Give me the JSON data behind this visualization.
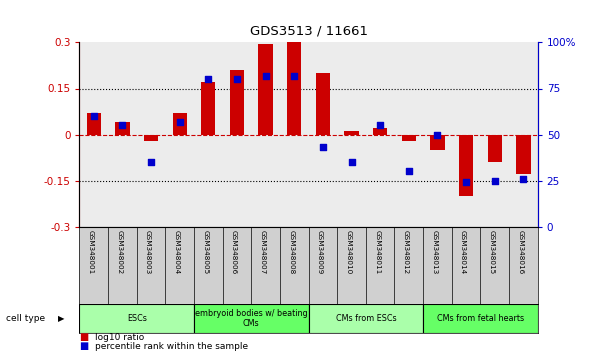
{
  "title": "GDS3513 / 11661",
  "samples": [
    "GSM348001",
    "GSM348002",
    "GSM348003",
    "GSM348004",
    "GSM348005",
    "GSM348006",
    "GSM348007",
    "GSM348008",
    "GSM348009",
    "GSM348010",
    "GSM348011",
    "GSM348012",
    "GSM348013",
    "GSM348014",
    "GSM348015",
    "GSM348016"
  ],
  "log10_ratio": [
    0.07,
    0.04,
    -0.02,
    0.07,
    0.17,
    0.21,
    0.295,
    0.3,
    0.2,
    0.01,
    0.02,
    -0.02,
    -0.05,
    -0.2,
    -0.09,
    -0.13
  ],
  "percentile_rank": [
    60,
    55,
    35,
    57,
    80,
    80,
    82,
    82,
    43,
    35,
    55,
    30,
    50,
    24,
    25,
    26
  ],
  "cell_type_groups": [
    {
      "label": "ESCs",
      "start": 0,
      "end": 4,
      "color": "#aaffaa"
    },
    {
      "label": "embryoid bodies w/ beating\nCMs",
      "start": 4,
      "end": 8,
      "color": "#66ff66"
    },
    {
      "label": "CMs from ESCs",
      "start": 8,
      "end": 12,
      "color": "#aaffaa"
    },
    {
      "label": "CMs from fetal hearts",
      "start": 12,
      "end": 16,
      "color": "#66ff66"
    }
  ],
  "bar_color": "#cc0000",
  "dot_color": "#0000cc",
  "zero_line_color": "#cc0000",
  "ylim_left": [
    -0.3,
    0.3
  ],
  "ylim_right": [
    0,
    100
  ],
  "yticks_left": [
    -0.3,
    -0.15,
    0,
    0.15,
    0.3
  ],
  "yticks_right": [
    0,
    25,
    50,
    75,
    100
  ],
  "background_color": "#ffffff",
  "plot_bg_color": "#ececec"
}
